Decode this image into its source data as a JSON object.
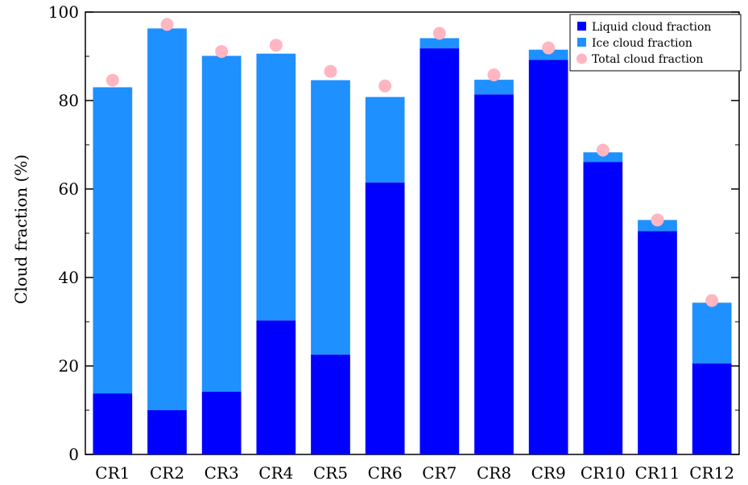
{
  "chart_data": {
    "type": "bar",
    "stacked": true,
    "title": "",
    "xlabel": "",
    "ylabel": "Cloud fraction (%)",
    "ylim": [
      0,
      100
    ],
    "yticks": [
      0,
      20,
      40,
      60,
      80,
      100
    ],
    "categories": [
      "CR1",
      "CR2",
      "CR3",
      "CR4",
      "CR5",
      "CR6",
      "CR7",
      "CR8",
      "CR9",
      "CR10",
      "CR11",
      "CR12"
    ],
    "series": [
      {
        "name": "Liquid cloud fraction",
        "kind": "bar",
        "color": "#0000ff",
        "values": [
          13.8,
          10.0,
          14.2,
          30.3,
          22.6,
          61.5,
          91.8,
          81.4,
          89.2,
          66.1,
          50.5,
          20.6
        ]
      },
      {
        "name": "Ice cloud fraction",
        "kind": "bar",
        "color": "#1e90ff",
        "values": [
          69.2,
          86.3,
          75.9,
          60.3,
          62.0,
          19.3,
          2.3,
          3.3,
          2.3,
          2.2,
          2.5,
          13.7
        ]
      },
      {
        "name": "Total cloud fraction",
        "kind": "marker",
        "color": "#ffb6c1",
        "values": [
          84.6,
          97.2,
          91.1,
          92.5,
          86.6,
          83.3,
          95.2,
          85.8,
          91.9,
          68.8,
          53.0,
          34.8
        ]
      }
    ],
    "legend_position": "top-right",
    "grid": false
  }
}
